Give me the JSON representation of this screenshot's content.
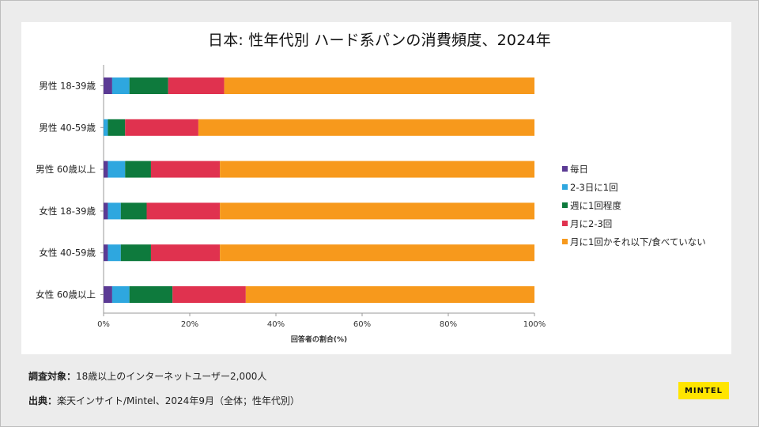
{
  "page": {
    "title": "日本: 性年代別 ハード系パンの消費頻度、2024年",
    "survey_label": "調査対象：",
    "survey_text": "18歳以上のインターネットユーザー2,000人",
    "source_label": "出典：",
    "source_text": "楽天インサイト/Mintel、2024年9月（全体；性年代別）",
    "logo_text": "MINTEL"
  },
  "chart_data": {
    "type": "bar",
    "orientation": "horizontal",
    "stacked": true,
    "title": "日本: 性年代別 ハード系パンの消費頻度、2024年",
    "xlabel": "回答者の割合(%)",
    "ylabel": "",
    "xlim": [
      0,
      100
    ],
    "xticks": [
      "0%",
      "20%",
      "40%",
      "60%",
      "80%",
      "100%"
    ],
    "legend_position": "right",
    "categories": [
      "男性 18-39歳",
      "男性 40-59歳",
      "男性 60歳以上",
      "女性 18-39歳",
      "女性 40-59歳",
      "女性 60歳以上"
    ],
    "series": [
      {
        "name": "毎日",
        "color": "#5b3a94",
        "values": [
          2,
          0,
          1,
          1,
          1,
          2
        ]
      },
      {
        "name": "2-3日に1回",
        "color": "#2ea7df",
        "values": [
          4,
          1,
          4,
          3,
          3,
          4
        ]
      },
      {
        "name": "週に1回程度",
        "color": "#0e7a3d",
        "values": [
          9,
          4,
          6,
          6,
          7,
          10
        ]
      },
      {
        "name": "月に2-3回",
        "color": "#e0324f",
        "values": [
          13,
          17,
          16,
          17,
          16,
          17
        ]
      },
      {
        "name": "月に1回かそれ以下/食べていない",
        "color": "#f7991c",
        "values": [
          72,
          78,
          73,
          73,
          73,
          67
        ]
      }
    ]
  }
}
